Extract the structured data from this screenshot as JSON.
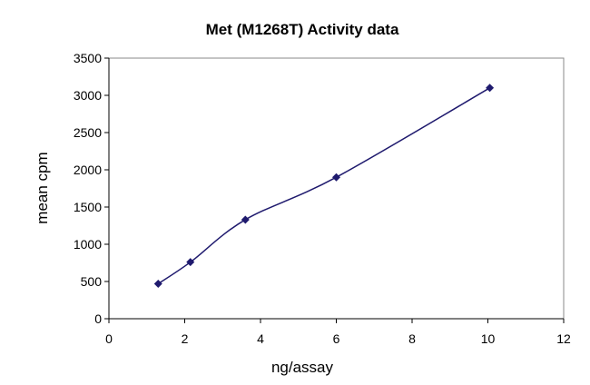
{
  "chart_data": {
    "type": "line",
    "title": "Met (M1268T) Activity data",
    "xlabel": "ng/assay",
    "ylabel": "mean cpm",
    "xlim": [
      0,
      12
    ],
    "ylim": [
      0,
      3500
    ],
    "xticks": [
      0,
      2,
      4,
      6,
      8,
      10,
      12
    ],
    "yticks": [
      0,
      500,
      1000,
      1500,
      2000,
      2500,
      3000,
      3500
    ],
    "grid": false,
    "legend": "none",
    "series": [
      {
        "name": "mean cpm",
        "color": "#1f1a6e",
        "marker": "diamond",
        "smooth": true,
        "x": [
          1.3,
          2.15,
          3.6,
          6.0,
          10.05
        ],
        "y": [
          470,
          760,
          1330,
          1900,
          3100
        ]
      }
    ]
  }
}
